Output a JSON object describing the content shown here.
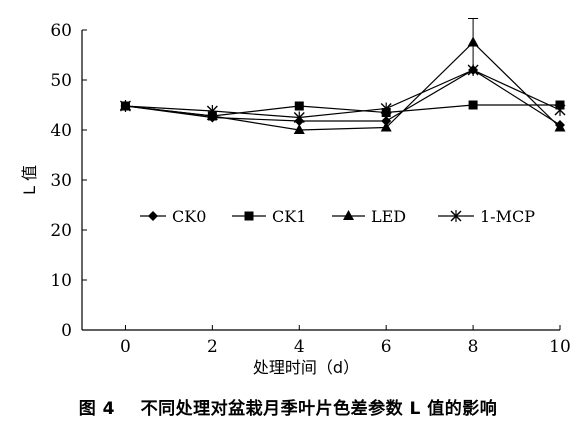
{
  "caption": {
    "label": "图 4",
    "text": "不同处理对盆栽月季叶片色差参数 L 值的影响"
  },
  "chart_data": {
    "type": "line",
    "xlabel": "处理时间（d）",
    "ylabel": "L 值",
    "xlim": [
      -1,
      10
    ],
    "ylim": [
      0,
      60
    ],
    "xticks": [
      0,
      2,
      4,
      6,
      8,
      10
    ],
    "yticks": [
      0,
      10,
      20,
      30,
      40,
      50,
      60
    ],
    "grid": false,
    "legend_position": "middle-center",
    "x": [
      0,
      2,
      4,
      6,
      8,
      10
    ],
    "series": [
      {
        "name": "CK0",
        "marker": "diamond",
        "values": [
          44.8,
          42.5,
          41.8,
          41.8,
          52.0,
          41.0
        ]
      },
      {
        "name": "CK1",
        "marker": "square",
        "values": [
          44.8,
          42.8,
          44.8,
          43.5,
          45.0,
          45.0
        ]
      },
      {
        "name": "LED",
        "marker": "triangle",
        "values": [
          44.8,
          42.8,
          40.0,
          40.5,
          57.5,
          40.5
        ],
        "error_bars": [
          null,
          null,
          null,
          null,
          4.8,
          null
        ]
      },
      {
        "name": "1-MCP",
        "marker": "x-star",
        "values": [
          44.8,
          43.8,
          42.5,
          44.3,
          52.0,
          44.0
        ]
      }
    ]
  }
}
